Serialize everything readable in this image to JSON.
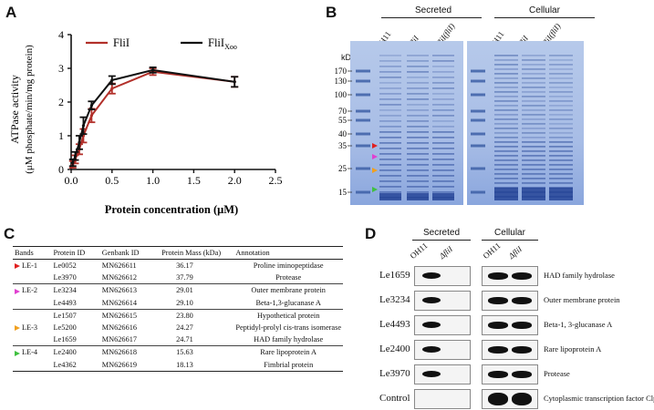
{
  "panels": {
    "a": "A",
    "b": "B",
    "c": "C",
    "d": "D"
  },
  "panelA": {
    "ylabel": "ATPase activity",
    "ylabel2": "(μM phosphate/min/mg protein)",
    "xlabel": "Protein concentration (μM)",
    "legend": {
      "fliI": "FliI",
      "fliIxoo_main": "FliI",
      "fliIxoo_sub": "Xoo"
    },
    "colors": {
      "fliI": "#b2302a",
      "fliIxoo": "#111111"
    }
  },
  "chart_data": {
    "type": "line",
    "xlabel": "Protein concentration (μM)",
    "ylabel": "ATPase activity (μM phosphate/min/mg protein)",
    "xlim": [
      0,
      2.5
    ],
    "ylim": [
      0,
      4
    ],
    "xticks": [
      "0.0",
      "0.5",
      "1.0",
      "1.5",
      "2.0",
      "2.5"
    ],
    "yticks": [
      "0",
      "1",
      "2",
      "3",
      "4"
    ],
    "series": [
      {
        "name": "FliI",
        "x": [
          0.02,
          0.05,
          0.1,
          0.15,
          0.25,
          0.5,
          1.0,
          2.0
        ],
        "y": [
          0.15,
          0.3,
          0.6,
          1.0,
          1.6,
          2.4,
          2.9,
          2.6
        ],
        "err": [
          0.1,
          0.12,
          0.15,
          0.2,
          0.2,
          0.15,
          0.1,
          0.15
        ]
      },
      {
        "name": "FliIXoo",
        "x": [
          0.02,
          0.05,
          0.1,
          0.15,
          0.25,
          0.5,
          1.0,
          2.0
        ],
        "y": [
          0.2,
          0.4,
          0.8,
          1.3,
          1.9,
          2.65,
          2.95,
          2.6
        ],
        "err": [
          0.1,
          0.12,
          0.2,
          0.25,
          0.12,
          0.12,
          0.08,
          0.15
        ]
      }
    ]
  },
  "panelB": {
    "secreted": "Secreted",
    "cellular": "Cellular",
    "kd": "kD",
    "lanes": [
      "OH11",
      "ΔfliI",
      "ΔfliI(fliI)"
    ],
    "markers": [
      "170",
      "130",
      "100",
      "70",
      "55",
      "40",
      "35",
      "25",
      "15"
    ],
    "arrow_colors": [
      "#e02020",
      "#e040d0",
      "#f0a020",
      "#40c040"
    ]
  },
  "panelC": {
    "headers": [
      "Bands",
      "Protein ID",
      "Genbank ID",
      "Protein Mass (kDa)",
      "Annotation"
    ],
    "rows": [
      {
        "band": "LE-1",
        "color": "#e02020",
        "pid": "Le0052",
        "gid": "MN626611",
        "mass": "36.17",
        "ann": "Proline iminopeptidase"
      },
      {
        "band": "",
        "color": "",
        "pid": "Le3970",
        "gid": "MN626612",
        "mass": "37.79",
        "ann": "Protease"
      },
      {
        "band": "LE-2",
        "color": "#e040d0",
        "pid": "Le3234",
        "gid": "MN626613",
        "mass": "29.01",
        "ann": "Outer membrane protein"
      },
      {
        "band": "",
        "color": "",
        "pid": "Le4493",
        "gid": "MN626614",
        "mass": "29.10",
        "ann": "Beta-1,3-glucanase A"
      },
      {
        "band": "",
        "color": "",
        "pid": "Le1507",
        "gid": "MN626615",
        "mass": "23.80",
        "ann": "Hypothetical protein"
      },
      {
        "band": "LE-3",
        "color": "#f0a020",
        "pid": "Le5200",
        "gid": "MN626616",
        "mass": "24.27",
        "ann": "Peptidyl-prolyl cis-trans isomerase"
      },
      {
        "band": "",
        "color": "",
        "pid": "Le1659",
        "gid": "MN626617",
        "mass": "24.71",
        "ann": "HAD family hydrolase"
      },
      {
        "band": "LE-4",
        "color": "#40c040",
        "pid": "Le2400",
        "gid": "MN626618",
        "mass": "15.63",
        "ann": "Rare lipoprotein A"
      },
      {
        "band": "",
        "color": "",
        "pid": "Le4362",
        "gid": "MN626619",
        "mass": "18.13",
        "ann": "Fimbrial protein"
      }
    ]
  },
  "panelD": {
    "secreted": "Secreted",
    "cellular": "Cellular",
    "lanes": [
      "OH11",
      "ΔfliI"
    ],
    "rows": [
      {
        "label": "Le1659",
        "ann": "HAD family hydrolase"
      },
      {
        "label": "Le3234",
        "ann": "Outer membrane protein"
      },
      {
        "label": "Le4493",
        "ann": "Beta-1, 3-glucanase A"
      },
      {
        "label": "Le2400",
        "ann": "Rare lipoprotein A"
      },
      {
        "label": "Le3970",
        "ann": "Protease"
      },
      {
        "label": "Control",
        "ann": "Cytoplasmic transcription factor Clp"
      }
    ]
  }
}
